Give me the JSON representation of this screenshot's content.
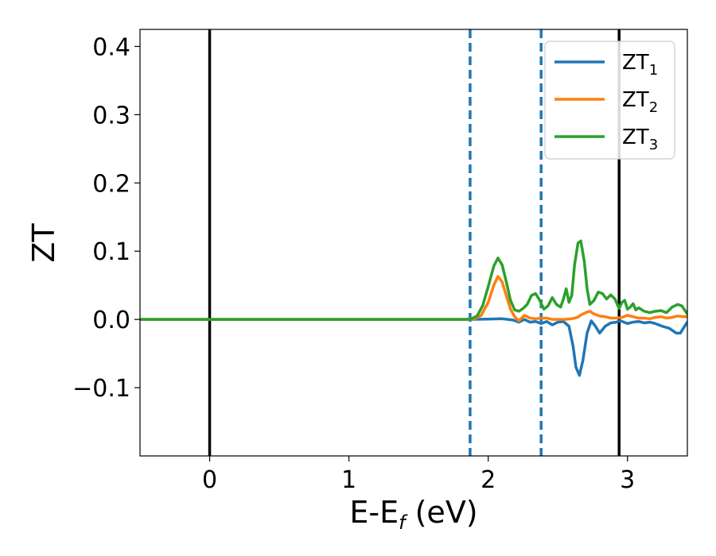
{
  "chart_data": {
    "type": "line",
    "xlabel": {
      "main": "E-E",
      "sub": "f",
      "unit": " (eV)"
    },
    "ylabel": "ZT",
    "xlim": [
      -0.5,
      3.43
    ],
    "ylim": [
      -0.2,
      0.425
    ],
    "xticks": [
      0,
      1,
      2,
      3
    ],
    "xtick_labels": [
      "0",
      "1",
      "2",
      "3"
    ],
    "yticks": [
      -0.1,
      0.0,
      0.1,
      0.2,
      0.3,
      0.4
    ],
    "ytick_labels": [
      "−0.1",
      "0.0",
      "0.1",
      "0.2",
      "0.3",
      "0.4"
    ],
    "grid": false,
    "legend_position": "top-right",
    "vlines": [
      {
        "x": 0.0,
        "style": "solid",
        "color": "#000000"
      },
      {
        "x": 1.87,
        "style": "dashed",
        "color": "#1f77b4"
      },
      {
        "x": 2.38,
        "style": "dashed",
        "color": "#1f77b4"
      },
      {
        "x": 2.94,
        "style": "solid",
        "color": "#000000"
      }
    ],
    "series": [
      {
        "name": "ZT",
        "sub": "1",
        "color": "#1f77b4",
        "points": [
          [
            -0.5,
            0
          ],
          [
            1.85,
            0
          ],
          [
            2.0,
            0.0005
          ],
          [
            2.1,
            0.001
          ],
          [
            2.18,
            -0.001
          ],
          [
            2.22,
            -0.004
          ],
          [
            2.26,
            0.0
          ],
          [
            2.3,
            -0.004
          ],
          [
            2.34,
            -0.003
          ],
          [
            2.38,
            -0.006
          ],
          [
            2.42,
            -0.003
          ],
          [
            2.46,
            -0.008
          ],
          [
            2.5,
            -0.004
          ],
          [
            2.54,
            -0.003
          ],
          [
            2.58,
            -0.01
          ],
          [
            2.61,
            -0.04
          ],
          [
            2.63,
            -0.07
          ],
          [
            2.655,
            -0.082
          ],
          [
            2.68,
            -0.06
          ],
          [
            2.71,
            -0.02
          ],
          [
            2.74,
            -0.002
          ],
          [
            2.77,
            -0.01
          ],
          [
            2.8,
            -0.02
          ],
          [
            2.84,
            -0.01
          ],
          [
            2.88,
            -0.005
          ],
          [
            2.92,
            -0.004
          ],
          [
            2.95,
            -0.002
          ],
          [
            3.0,
            -0.006
          ],
          [
            3.04,
            -0.004
          ],
          [
            3.08,
            -0.003
          ],
          [
            3.12,
            -0.005
          ],
          [
            3.16,
            -0.004
          ],
          [
            3.2,
            -0.006
          ],
          [
            3.25,
            -0.01
          ],
          [
            3.3,
            -0.013
          ],
          [
            3.35,
            -0.02
          ],
          [
            3.38,
            -0.02
          ],
          [
            3.41,
            -0.01
          ],
          [
            3.43,
            -0.004
          ]
        ]
      },
      {
        "name": "ZT",
        "sub": "2",
        "color": "#ff7f0e",
        "points": [
          [
            -0.5,
            0
          ],
          [
            1.85,
            0
          ],
          [
            1.9,
            0.001
          ],
          [
            1.95,
            0.006
          ],
          [
            2.0,
            0.025
          ],
          [
            2.04,
            0.05
          ],
          [
            2.07,
            0.063
          ],
          [
            2.1,
            0.055
          ],
          [
            2.13,
            0.035
          ],
          [
            2.16,
            0.015
          ],
          [
            2.19,
            0.004
          ],
          [
            2.22,
            -0.002
          ],
          [
            2.26,
            0.006
          ],
          [
            2.3,
            0.002
          ],
          [
            2.34,
            0.001
          ],
          [
            2.38,
            0.002
          ],
          [
            2.42,
            0.002
          ],
          [
            2.46,
            0.0
          ],
          [
            2.5,
            0.0
          ],
          [
            2.55,
            0.0
          ],
          [
            2.6,
            0.001
          ],
          [
            2.64,
            0.003
          ],
          [
            2.67,
            0.007
          ],
          [
            2.7,
            0.01
          ],
          [
            2.73,
            0.012
          ],
          [
            2.76,
            0.008
          ],
          [
            2.8,
            0.005
          ],
          [
            2.84,
            0.004
          ],
          [
            2.88,
            0.002
          ],
          [
            2.92,
            0.002
          ],
          [
            2.96,
            0.003
          ],
          [
            3.0,
            0.006
          ],
          [
            3.04,
            0.004
          ],
          [
            3.08,
            0.002
          ],
          [
            3.12,
            0.002
          ],
          [
            3.16,
            0.001
          ],
          [
            3.2,
            0.003
          ],
          [
            3.24,
            0.004
          ],
          [
            3.28,
            0.002
          ],
          [
            3.32,
            0.003
          ],
          [
            3.36,
            0.005
          ],
          [
            3.4,
            0.004
          ],
          [
            3.43,
            0.004
          ]
        ]
      },
      {
        "name": "ZT",
        "sub": "3",
        "color": "#2ca02c",
        "points": [
          [
            -0.5,
            0
          ],
          [
            1.84,
            0
          ],
          [
            1.88,
            0.001
          ],
          [
            1.92,
            0.005
          ],
          [
            1.96,
            0.02
          ],
          [
            2.0,
            0.048
          ],
          [
            2.04,
            0.078
          ],
          [
            2.07,
            0.09
          ],
          [
            2.1,
            0.08
          ],
          [
            2.13,
            0.055
          ],
          [
            2.16,
            0.028
          ],
          [
            2.19,
            0.014
          ],
          [
            2.22,
            0.012
          ],
          [
            2.25,
            0.016
          ],
          [
            2.28,
            0.022
          ],
          [
            2.31,
            0.035
          ],
          [
            2.34,
            0.038
          ],
          [
            2.37,
            0.028
          ],
          [
            2.4,
            0.015
          ],
          [
            2.43,
            0.02
          ],
          [
            2.46,
            0.032
          ],
          [
            2.49,
            0.022
          ],
          [
            2.52,
            0.018
          ],
          [
            2.54,
            0.03
          ],
          [
            2.56,
            0.045
          ],
          [
            2.58,
            0.025
          ],
          [
            2.6,
            0.035
          ],
          [
            2.62,
            0.08
          ],
          [
            2.645,
            0.112
          ],
          [
            2.665,
            0.115
          ],
          [
            2.69,
            0.085
          ],
          [
            2.71,
            0.045
          ],
          [
            2.73,
            0.022
          ],
          [
            2.76,
            0.028
          ],
          [
            2.79,
            0.04
          ],
          [
            2.82,
            0.038
          ],
          [
            2.85,
            0.03
          ],
          [
            2.88,
            0.036
          ],
          [
            2.91,
            0.03
          ],
          [
            2.94,
            0.016
          ],
          [
            2.96,
            0.025
          ],
          [
            2.98,
            0.028
          ],
          [
            3.0,
            0.015
          ],
          [
            3.02,
            0.018
          ],
          [
            3.04,
            0.023
          ],
          [
            3.06,
            0.014
          ],
          [
            3.08,
            0.017
          ],
          [
            3.12,
            0.012
          ],
          [
            3.16,
            0.01
          ],
          [
            3.2,
            0.012
          ],
          [
            3.24,
            0.013
          ],
          [
            3.28,
            0.01
          ],
          [
            3.32,
            0.018
          ],
          [
            3.36,
            0.022
          ],
          [
            3.39,
            0.02
          ],
          [
            3.41,
            0.014
          ],
          [
            3.43,
            0.008
          ]
        ]
      }
    ]
  }
}
